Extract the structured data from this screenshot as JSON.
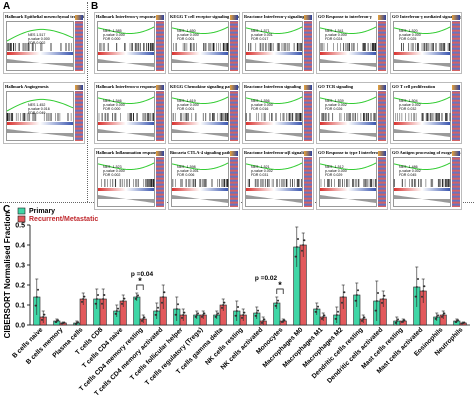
{
  "panels": {
    "a": {
      "letter": "A",
      "tiles": [
        {
          "title": "Hallmark Epithelial mesenchymal transition",
          "stats": [
            "NES 1.517",
            "p-value 0.000",
            "FDR 0.002"
          ]
        },
        {
          "title": "Hallmark Angiogenesis",
          "stats": [
            "NES 1.452",
            "p-value 0.016",
            "FDR 0.049"
          ]
        }
      ]
    },
    "b": {
      "letter": "B",
      "tiles": [
        {
          "title": "Hallmark Interferon-γ response",
          "stats": [
            "NES -1.585",
            "p-value 0.000",
            "FDR 0.000"
          ]
        },
        {
          "title": "KEGG T cell receptor signaling pathway",
          "stats": [
            "NES -1.650",
            "p-value 0.000",
            "FDR 0.001"
          ]
        },
        {
          "title": "Reactome Interferon-γ signaling",
          "stats": [
            "NES -1.571",
            "p-value 0.001",
            "FDR 0.017"
          ]
        },
        {
          "title": "GO Response to interferon-γ",
          "stats": [
            "NES -1.541",
            "p-value 0.000",
            "FDR 0.024"
          ]
        },
        {
          "title": "GO Interferon-γ mediated signaling pathway",
          "stats": [
            "NES -1.520",
            "p-value 0.000",
            "FDR 0.025"
          ]
        },
        {
          "title": "Hallmark Interferon-α response",
          "stats": [
            "NES -1.546",
            "p-value 0.000",
            "FDR 0.000"
          ]
        },
        {
          "title": "KEGG Chemokine signaling pathway",
          "stats": [
            "NES -1.619",
            "p-value 0.000",
            "FDR 0.001"
          ]
        },
        {
          "title": "Reactome Interferon signaling",
          "stats": [
            "NES -1.556",
            "p-value 0.000",
            "FDR 0.016"
          ]
        },
        {
          "title": "GO TCR signaling",
          "stats": [
            "NES -1.539",
            "p-value 0.002",
            "FDR 0.026"
          ]
        },
        {
          "title": "GO T cell proliferation",
          "stats": [
            "NES -1.504",
            "p-value 0.002",
            "FDR 0.032"
          ]
        },
        {
          "title": "Hallmark Inflammation response",
          "stats": [
            "NES -1.523",
            "p-value 0.000",
            "FDR 0.002"
          ]
        },
        {
          "title": "Biocarta CTLA-4 signaling pathway",
          "stats": [
            "NES -1.598",
            "p-value 0.001",
            "FDR 0.006"
          ]
        },
        {
          "title": "Reactome Interferon-α/β signaling",
          "stats": [
            "NES -1.521",
            "p-value 0.002",
            "FDR 0.031"
          ]
        },
        {
          "title": "GO Response to type I interferon",
          "stats": [
            "NES -1.512",
            "p-value 0.000",
            "FDR 0.029"
          ]
        },
        {
          "title": "GO Antigen processing of exogenous peptide antigen via MHC-I",
          "stats": [
            "NES -1.486",
            "p-value 0.002",
            "FDR 0.045"
          ]
        }
      ]
    },
    "c": {
      "letter": "C"
    }
  },
  "colors": {
    "primary": "#3fd6a6",
    "recurrent": "#e2595c",
    "es_curve": "#33cc33",
    "rank_red": "#d9322f",
    "rank_blue": "#3a56b0"
  },
  "chart_data": {
    "type": "bar",
    "ylabel": "CIBERSORT Normalised Fraction",
    "ylim": [
      0,
      0.5
    ],
    "yticks": [
      0.0,
      0.1,
      0.2,
      0.3,
      0.4,
      0.5
    ],
    "legend": {
      "placement": "top-left",
      "entries": [
        "Primary",
        "Recurrent/Metastatic"
      ]
    },
    "categories": [
      "B cells naive",
      "B cells memory",
      "Plasma cells",
      "T cells CD8",
      "T cells CD4 naive",
      "T cells CD4 memory resting",
      "T cells CD4 memory activated",
      "T cells follicular helper",
      "T cells regulatory (Tregs)",
      "T cells gamma delta",
      "NK cells resting",
      "NK cells activated",
      "Monocytes",
      "Macrophages M0",
      "Macrophages M1",
      "Macrophages M2",
      "Dendritic cells resting",
      "Dendritic cells activated",
      "Mast cells resting",
      "Mast cells activated",
      "Eosinophils",
      "Neutrophils"
    ],
    "series": [
      {
        "name": "Primary",
        "values": [
          0.14,
          0.02,
          0.01,
          0.13,
          0.07,
          0.14,
          0.07,
          0.08,
          0.05,
          0.05,
          0.07,
          0.06,
          0.11,
          0.39,
          0.08,
          0.05,
          0.15,
          0.12,
          0.02,
          0.19,
          0.04,
          0.02
        ],
        "err": [
          0.09,
          0.01,
          0.01,
          0.05,
          0.03,
          0.02,
          0.04,
          0.06,
          0.02,
          0.02,
          0.05,
          0.03,
          0.03,
          0.1,
          0.03,
          0.04,
          0.06,
          0.1,
          0.02,
          0.1,
          0.02,
          0.01
        ]
      },
      {
        "name": "Recurrent/Metastatic",
        "values": [
          0.04,
          0.01,
          0.13,
          0.13,
          0.12,
          0.03,
          0.14,
          0.05,
          0.05,
          0.1,
          0.05,
          0.02,
          0.02,
          0.4,
          0.04,
          0.14,
          0.03,
          0.13,
          0.02,
          0.17,
          0.05,
          0.01
        ],
        "err": [
          0.03,
          0.005,
          0.03,
          0.05,
          0.03,
          0.02,
          0.06,
          0.03,
          0.02,
          0.03,
          0.03,
          0.02,
          0.01,
          0.06,
          0.02,
          0.06,
          0.02,
          0.04,
          0.01,
          0.06,
          0.02,
          0.005
        ]
      }
    ],
    "annotations": [
      {
        "label": "p =0.04",
        "star": "*",
        "pair": [
          5,
          5
        ]
      },
      {
        "label": "p =0.02",
        "star": "*",
        "pair": [
          12,
          12
        ]
      }
    ]
  }
}
